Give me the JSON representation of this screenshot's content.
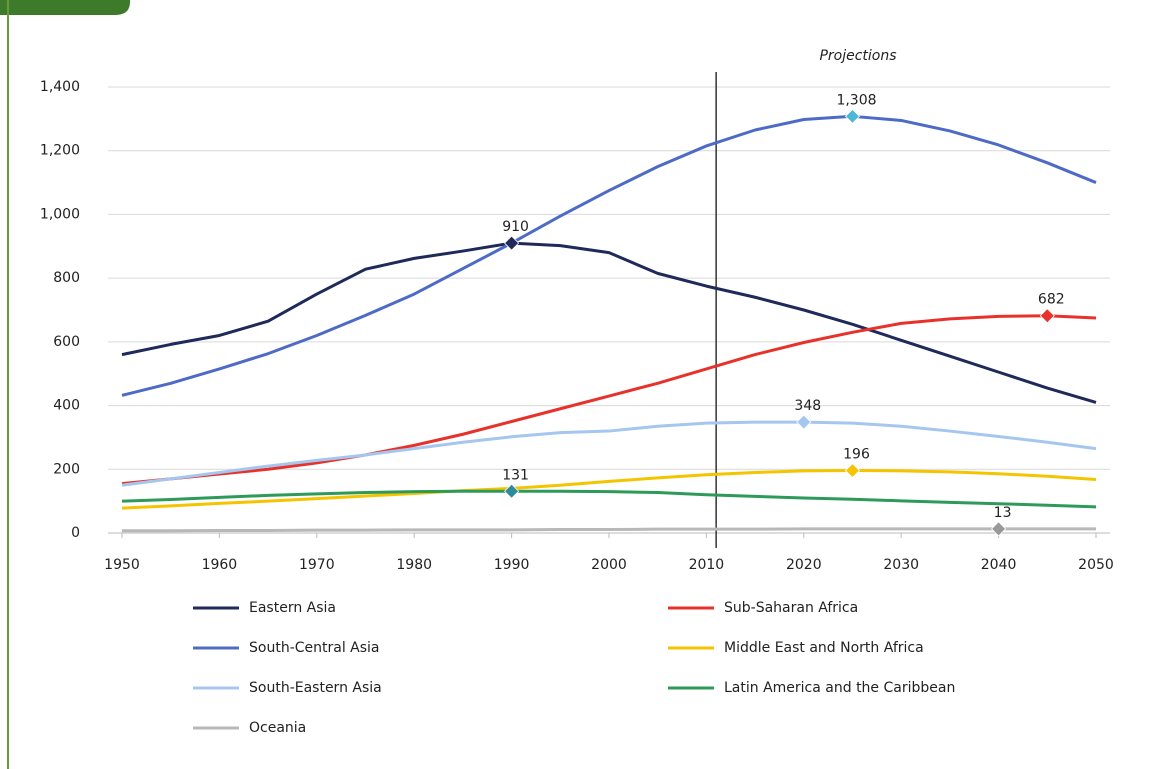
{
  "chart_data": {
    "type": "line",
    "x": [
      1950,
      1955,
      1960,
      1965,
      1970,
      1975,
      1980,
      1985,
      1990,
      1995,
      2000,
      2005,
      2010,
      2015,
      2020,
      2025,
      2030,
      2035,
      2040,
      2045,
      2050
    ],
    "xlim": [
      1950,
      2050
    ],
    "xticks": [
      1950,
      1960,
      1970,
      1980,
      1990,
      2000,
      2010,
      2020,
      2030,
      2040,
      2050
    ],
    "ylim": [
      0,
      1400
    ],
    "yticks": [
      0,
      200,
      400,
      600,
      800,
      {
        "value": 1000,
        "label": "1,000"
      },
      {
        "value": 1200,
        "label": "1,200"
      },
      {
        "value": 1400,
        "label": "1,400"
      }
    ],
    "grid": true,
    "vline": 2011,
    "vline_label": "Projections",
    "series": [
      {
        "name": "Eastern Asia",
        "color": "#1f2a5a",
        "marker_color": "#1f2a5a",
        "values": [
          560,
          592,
          620,
          665,
          750,
          828,
          862,
          885,
          910,
          902,
          880,
          815,
          775,
          740,
          700,
          655,
          605,
          555,
          505,
          455,
          410
        ],
        "value_labels": [
          null,
          null,
          null,
          null,
          null,
          null,
          null,
          null,
          "910",
          null,
          null,
          null,
          null,
          null,
          null,
          null,
          null,
          null,
          null,
          null,
          null
        ]
      },
      {
        "name": "Sub-Saharan Africa",
        "color": "#e8312a",
        "marker_color": "#e8312a",
        "values": [
          155,
          170,
          185,
          200,
          220,
          245,
          275,
          310,
          350,
          390,
          430,
          470,
          515,
          560,
          598,
          630,
          658,
          672,
          680,
          682,
          675
        ],
        "value_labels": [
          null,
          null,
          null,
          null,
          null,
          null,
          null,
          null,
          null,
          null,
          null,
          null,
          null,
          null,
          null,
          null,
          null,
          null,
          null,
          "682",
          null
        ]
      },
      {
        "name": "South-Central Asia",
        "color": "#4d6bc6",
        "marker_color": "#4bb8d8",
        "values": [
          432,
          470,
          515,
          563,
          620,
          683,
          750,
          830,
          910,
          995,
          1075,
          1150,
          1215,
          1265,
          1298,
          1308,
          1295,
          1262,
          1218,
          1162,
          1100
        ],
        "value_labels": [
          null,
          null,
          null,
          null,
          null,
          null,
          null,
          null,
          null,
          null,
          null,
          null,
          null,
          null,
          null,
          "1,308",
          null,
          null,
          null,
          null,
          null
        ]
      },
      {
        "name": "Middle East and North Africa",
        "color": "#f5c400",
        "marker_color": "#f5c400",
        "values": [
          78,
          85,
          93,
          100,
          108,
          116,
          124,
          133,
          140,
          150,
          162,
          173,
          183,
          190,
          195,
          196,
          195,
          192,
          186,
          178,
          168
        ],
        "value_labels": [
          null,
          null,
          null,
          null,
          null,
          null,
          null,
          null,
          null,
          null,
          null,
          null,
          null,
          null,
          null,
          "196",
          null,
          null,
          null,
          null,
          null
        ]
      },
      {
        "name": "South-Eastern Asia",
        "color": "#a4c6ef",
        "marker_color": "#a4c6ef",
        "values": [
          150,
          170,
          190,
          210,
          228,
          245,
          265,
          285,
          302,
          315,
          320,
          335,
          345,
          348,
          348,
          345,
          335,
          320,
          303,
          285,
          265
        ],
        "value_labels": [
          null,
          null,
          null,
          null,
          null,
          null,
          null,
          null,
          null,
          null,
          null,
          null,
          null,
          null,
          "348",
          null,
          null,
          null,
          null,
          null,
          null
        ]
      },
      {
        "name": "Latin America and the Caribbean",
        "color": "#2e9a5a",
        "marker_color": "#2e8c9a",
        "values": [
          100,
          105,
          112,
          118,
          123,
          127,
          130,
          131,
          131,
          131,
          130,
          127,
          120,
          115,
          110,
          106,
          101,
          96,
          92,
          87,
          82
        ],
        "value_labels": [
          null,
          null,
          null,
          null,
          null,
          null,
          null,
          null,
          "131",
          null,
          null,
          null,
          null,
          null,
          null,
          null,
          null,
          null,
          null,
          null,
          null
        ]
      },
      {
        "name": "Oceania",
        "color": "#b8b8b8",
        "marker_color": "#999999",
        "values": [
          7,
          7,
          8,
          8,
          9,
          9,
          10,
          10,
          10,
          11,
          11,
          12,
          12,
          12,
          13,
          13,
          13,
          13,
          13,
          13,
          13
        ],
        "value_labels": [
          null,
          null,
          null,
          null,
          null,
          null,
          null,
          null,
          null,
          null,
          null,
          null,
          null,
          null,
          null,
          null,
          null,
          null,
          "13",
          null,
          null
        ]
      }
    ]
  }
}
